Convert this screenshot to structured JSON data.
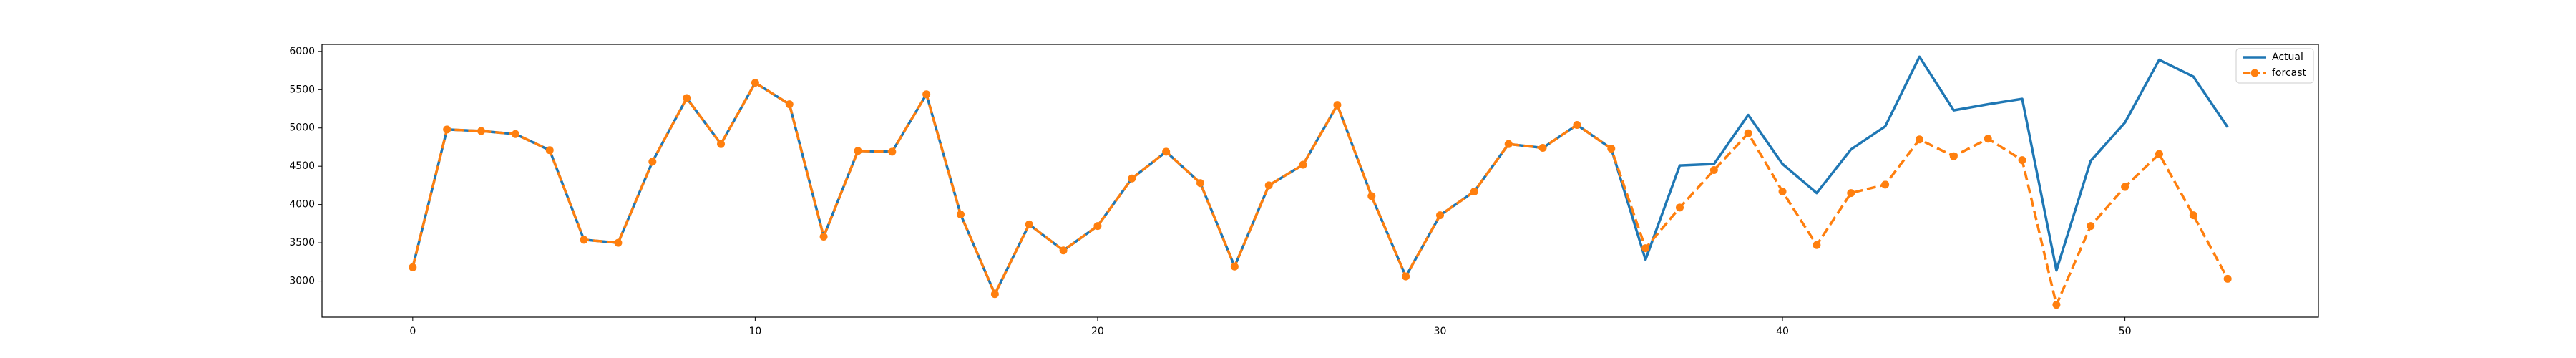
{
  "chart_data": {
    "type": "line",
    "x": [
      0,
      1,
      2,
      3,
      4,
      5,
      6,
      7,
      8,
      9,
      10,
      11,
      12,
      13,
      14,
      15,
      16,
      17,
      18,
      19,
      20,
      21,
      22,
      23,
      24,
      25,
      26,
      27,
      28,
      29,
      30,
      31,
      32,
      33,
      34,
      35,
      36,
      37,
      38,
      39,
      40,
      41,
      42,
      43,
      44,
      45,
      46,
      47,
      48,
      49,
      50,
      51,
      52,
      53
    ],
    "series": [
      {
        "name": "Actual",
        "color": "#1f77b4",
        "dashed": false,
        "markers": false,
        "values": [
          3180,
          4980,
          4960,
          4920,
          4710,
          3540,
          3500,
          4560,
          5390,
          4790,
          5590,
          5310,
          3580,
          4700,
          4690,
          5440,
          3870,
          2830,
          3740,
          3400,
          3720,
          4340,
          4690,
          4280,
          3190,
          4250,
          4520,
          5300,
          4110,
          3060,
          3860,
          4170,
          4790,
          4740,
          5040,
          4730,
          3280,
          4510,
          4530,
          5170,
          4530,
          4150,
          4720,
          5020,
          5930,
          5230,
          5310,
          5380,
          3140,
          4570,
          5070,
          5890,
          5670,
          5010
        ]
      },
      {
        "name": "forcast",
        "color": "#ff7f0e",
        "dashed": true,
        "markers": true,
        "values": [
          3180,
          4980,
          4960,
          4920,
          4710,
          3540,
          3500,
          4560,
          5390,
          4790,
          5590,
          5310,
          3580,
          4700,
          4690,
          5440,
          3870,
          2830,
          3740,
          3400,
          3720,
          4340,
          4690,
          4280,
          3190,
          4250,
          4520,
          5300,
          4110,
          3060,
          3860,
          4170,
          4790,
          4740,
          5040,
          4730,
          3430,
          3960,
          4450,
          4930,
          4170,
          3470,
          4150,
          4260,
          4850,
          4630,
          4860,
          4580,
          2690,
          3720,
          4230,
          4660,
          3860,
          3030
        ]
      }
    ],
    "xlim": [
      -2.65,
      55.65
    ],
    "ylim": [
      2528,
      6092
    ],
    "xticks": [
      0,
      10,
      20,
      30,
      40,
      50
    ],
    "yticks": [
      3000,
      3500,
      4000,
      4500,
      5000,
      5500,
      6000
    ],
    "legend": "upper right"
  }
}
